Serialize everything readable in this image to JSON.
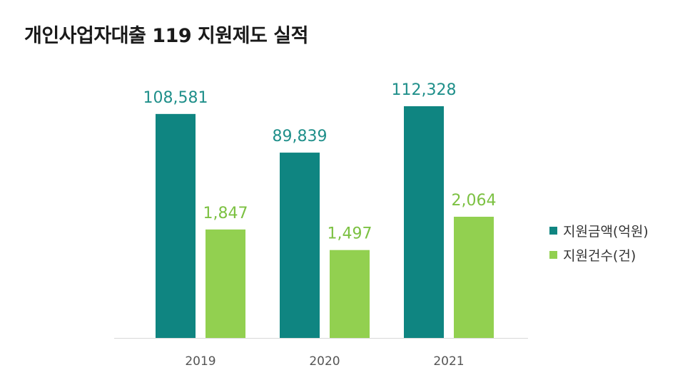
{
  "chart_data": {
    "type": "bar",
    "title": "개인사업자대출 119 지원제도 실적",
    "categories": [
      "2019",
      "2020",
      "2021"
    ],
    "series": [
      {
        "name": "지원금액(억원)",
        "values": [
          108581,
          89839,
          112328
        ],
        "labels": [
          "108,581",
          "89,839",
          "112,328"
        ],
        "color": "#0f8581",
        "label_color": "#1f8f8a"
      },
      {
        "name": "지원건수(건)",
        "values": [
          1847,
          1497,
          2064
        ],
        "labels": [
          "1,847",
          "1,497",
          "2,064"
        ],
        "color": "#92d050",
        "label_color": "#7cc142"
      }
    ],
    "legend_position": "right",
    "grid": false
  }
}
